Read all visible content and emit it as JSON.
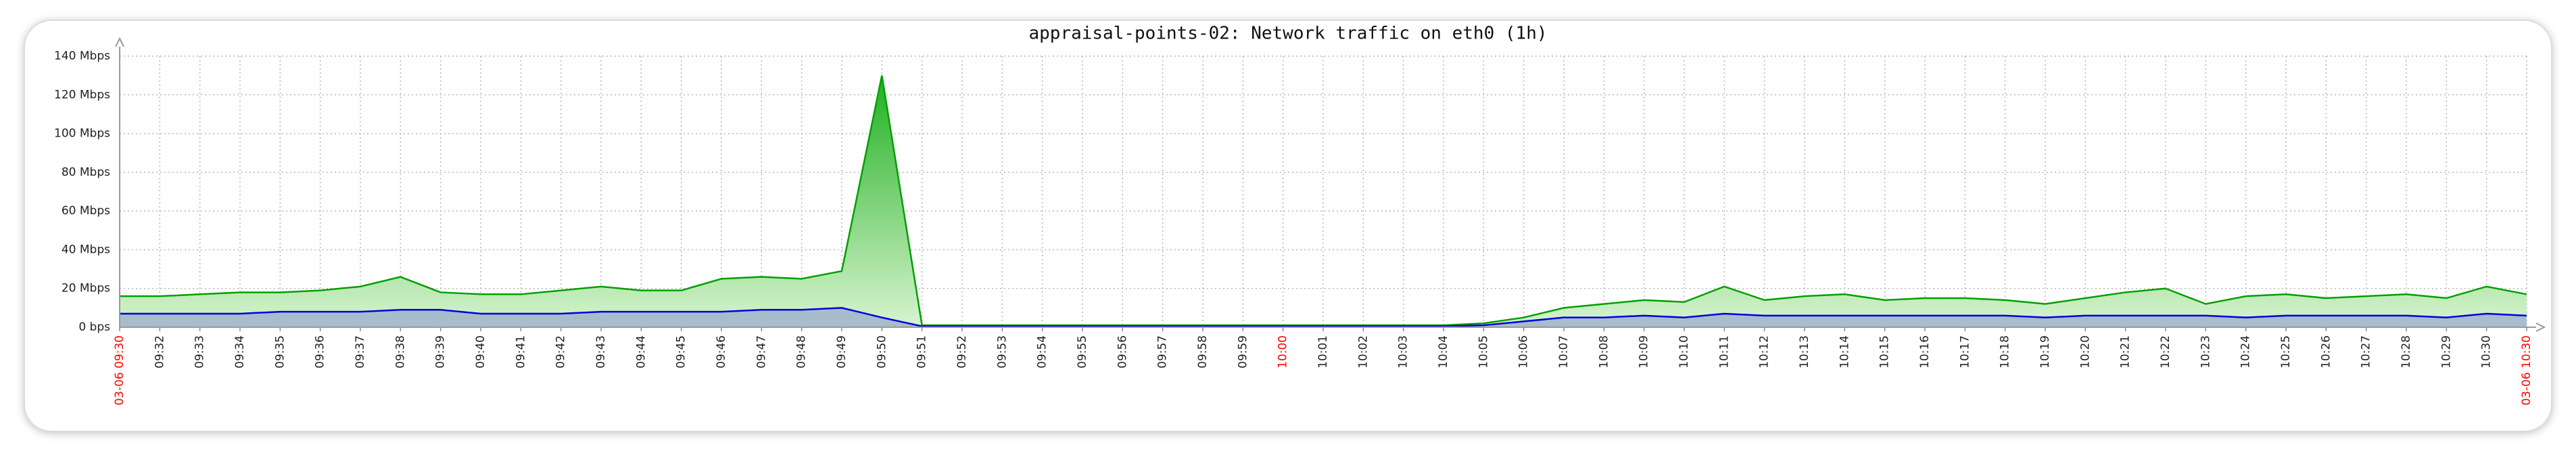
{
  "chart_data": {
    "type": "area",
    "title": "appraisal-points-02: Network traffic on eth0 (1h)",
    "categories": [
      "03-06 09:30",
      "09:32",
      "09:33",
      "09:34",
      "09:35",
      "09:36",
      "09:37",
      "09:38",
      "09:39",
      "09:40",
      "09:41",
      "09:42",
      "09:43",
      "09:44",
      "09:45",
      "09:46",
      "09:47",
      "09:48",
      "09:49",
      "09:50",
      "09:51",
      "09:52",
      "09:53",
      "09:54",
      "09:55",
      "09:56",
      "09:57",
      "09:58",
      "09:59",
      "10:00",
      "10:01",
      "10:02",
      "10:03",
      "10:04",
      "10:05",
      "10:06",
      "10:07",
      "10:08",
      "10:09",
      "10:10",
      "10:11",
      "10:12",
      "10:13",
      "10:14",
      "10:15",
      "10:16",
      "10:17",
      "10:18",
      "10:19",
      "10:20",
      "10:21",
      "10:22",
      "10:23",
      "10:24",
      "10:25",
      "10:26",
      "10:27",
      "10:28",
      "10:29",
      "10:30",
      "03-06 10:30"
    ],
    "highlight_indices": [
      0,
      29,
      60
    ],
    "highlight_color": "#ff0000",
    "label_color": "#222222",
    "series": [
      {
        "color": "#00a000",
        "fill_top": "#20b020",
        "fill_bottom": "#d8f4d0",
        "values": [
          16,
          16,
          17,
          18,
          18,
          19,
          21,
          26,
          18,
          17,
          17,
          19,
          21,
          19,
          19,
          25,
          26,
          25,
          29,
          130,
          1,
          1,
          1,
          1,
          1,
          1,
          1,
          1,
          1,
          1,
          1,
          1,
          1,
          1,
          2,
          5,
          10,
          12,
          14,
          13,
          21,
          14,
          16,
          17,
          14,
          15,
          15,
          14,
          12,
          15,
          18,
          20,
          12,
          16,
          17,
          15,
          16,
          17,
          15,
          21,
          17
        ]
      },
      {
        "color": "#0000e0",
        "fill_top": "#a8bccc",
        "fill_bottom": "#a8bccc",
        "values": [
          7,
          7,
          7,
          7,
          8,
          8,
          8,
          9,
          9,
          7,
          7,
          7,
          8,
          8,
          8,
          8,
          9,
          9,
          10,
          5,
          0.5,
          0.5,
          0.5,
          0.5,
          0.5,
          0.5,
          0.5,
          0.5,
          0.5,
          0.5,
          0.5,
          0.5,
          0.5,
          0.5,
          1,
          3,
          5,
          5,
          6,
          5,
          7,
          6,
          6,
          6,
          6,
          6,
          6,
          6,
          5,
          6,
          6,
          6,
          6,
          5,
          6,
          6,
          6,
          6,
          5,
          7,
          6
        ]
      }
    ],
    "ylim": [
      0,
      140
    ],
    "yticks": [
      {
        "value": 0,
        "label": "0 bps"
      },
      {
        "value": 20,
        "label": "20 Mbps"
      },
      {
        "value": 40,
        "label": "40 Mbps"
      },
      {
        "value": 60,
        "label": "60 Mbps"
      },
      {
        "value": 80,
        "label": "80 Mbps"
      },
      {
        "value": 100,
        "label": "100 Mbps"
      },
      {
        "value": 120,
        "label": "120 Mbps"
      },
      {
        "value": 140,
        "label": "140 Mbps"
      }
    ],
    "grid": true
  }
}
